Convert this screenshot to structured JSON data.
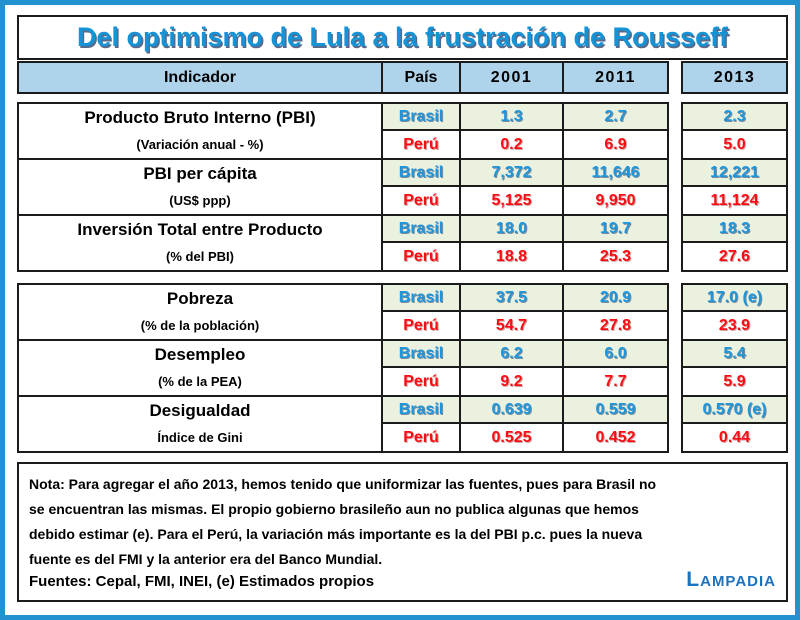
{
  "title": "Del optimismo de Lula a la frustración de Rousseff",
  "header": {
    "indicator": "Indicador",
    "country": "País",
    "y2001": "2001",
    "y2011": "2011",
    "y2013": "2013"
  },
  "table": {
    "country_labels": {
      "brasil": "Brasil",
      "peru": "Perú"
    },
    "groups": [
      {
        "rows": [
          {
            "indicator": "Producto Bruto Interno (PBI)",
            "unit": "(Variación anual - %)",
            "brasil": [
              "1.3",
              "2.7",
              "2.3"
            ],
            "peru": [
              "0.2",
              "6.9",
              "5.0"
            ]
          },
          {
            "indicator": "PBI per cápita",
            "unit": "(US$ ppp)",
            "brasil": [
              "7,372",
              "11,646",
              "12,221"
            ],
            "peru": [
              "5,125",
              "9,950",
              "11,124"
            ]
          },
          {
            "indicator": "Inversión Total entre Producto",
            "unit": "(% del PBI)",
            "brasil": [
              "18.0",
              "19.7",
              "18.3"
            ],
            "peru": [
              "18.8",
              "25.3",
              "27.6"
            ]
          }
        ]
      },
      {
        "rows": [
          {
            "indicator": "Pobreza",
            "unit": "(% de la población)",
            "brasil": [
              "37.5",
              "20.9",
              "17.0 (e)"
            ],
            "peru": [
              "54.7",
              "27.8",
              "23.9"
            ]
          },
          {
            "indicator": "Desempleo",
            "unit": "(% de la PEA)",
            "brasil": [
              "6.2",
              "6.0",
              "5.4"
            ],
            "peru": [
              "9.2",
              "7.7",
              "5.9"
            ]
          },
          {
            "indicator": "Desigualdad",
            "unit": "Índice de Gini",
            "brasil": [
              "0.639",
              "0.559",
              "0.570 (e)"
            ],
            "peru": [
              "0.525",
              "0.452",
              "0.44"
            ]
          }
        ]
      }
    ]
  },
  "note": {
    "lines": [
      "Nota: Para agregar el año 2013, hemos tenido que uniformizar las fuentes, pues para Brasil no",
      "se encuentran las mismas. El propio gobierno brasileño aun no publica algunas que hemos",
      "debido estimar (e). Para el Perú, la variación más importante es la del PBI p.c. pues la nueva",
      "fuente es del FMI y la anterior era del Banco Mundial."
    ]
  },
  "sources": "Fuentes: Cepal, FMI, INEI, (e) Estimados propios",
  "logo": {
    "first": "L",
    "rest": "AMPADIA"
  },
  "colors": {
    "frame_blue": "#2191d0",
    "title_blue": "#1493d6",
    "header_bg": "#aed3eb",
    "brasil_row_bg": "#eaf1df",
    "brasil_text": "#1e96dc",
    "peru_text": "#f90d12",
    "logo_blue": "#1a73be",
    "box_border": "#1b1b1b"
  },
  "chart_data": {
    "type": "table",
    "title": "Del optimismo de Lula a la frustración de Rousseff",
    "columns": [
      "Indicador",
      "País",
      "2001",
      "2011",
      "2013"
    ],
    "rows": [
      [
        "Producto Bruto Interno (PBI) (Variación anual - %)",
        "Brasil",
        1.3,
        2.7,
        2.3
      ],
      [
        "Producto Bruto Interno (PBI) (Variación anual - %)",
        "Perú",
        0.2,
        6.9,
        5.0
      ],
      [
        "PBI per cápita (US$ ppp)",
        "Brasil",
        7372,
        11646,
        12221
      ],
      [
        "PBI per cápita (US$ ppp)",
        "Perú",
        5125,
        9950,
        11124
      ],
      [
        "Inversión Total entre Producto (% del PBI)",
        "Brasil",
        18.0,
        19.7,
        18.3
      ],
      [
        "Inversión Total entre Producto (% del PBI)",
        "Perú",
        18.8,
        25.3,
        27.6
      ],
      [
        "Pobreza (% de la población)",
        "Brasil",
        37.5,
        20.9,
        "17.0 (e)"
      ],
      [
        "Pobreza (% de la población)",
        "Perú",
        54.7,
        27.8,
        23.9
      ],
      [
        "Desempleo (% de la PEA)",
        "Brasil",
        6.2,
        6.0,
        5.4
      ],
      [
        "Desempleo (% de la PEA)",
        "Perú",
        9.2,
        7.7,
        5.9
      ],
      [
        "Desigualdad (Índice de Gini)",
        "Brasil",
        0.639,
        0.559,
        "0.570 (e)"
      ],
      [
        "Desigualdad (Índice de Gini)",
        "Perú",
        0.525,
        0.452,
        0.44
      ]
    ]
  }
}
